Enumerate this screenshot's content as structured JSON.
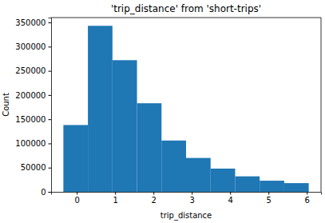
{
  "chart_data": {
    "type": "histogram",
    "title": "'trip_distance' from 'short-trips'",
    "x_label": "trip_distance",
    "y_label": "Count",
    "bins": [
      -0.35,
      0.29,
      0.93,
      1.57,
      2.21,
      2.85,
      3.49,
      4.13,
      4.77,
      5.41,
      6.05
    ],
    "values": [
      138000,
      343000,
      272000,
      183000,
      106000,
      70000,
      48000,
      32000,
      23000,
      18000
    ],
    "color": "#1f77b4",
    "xlim": [
      -0.67,
      6.37
    ],
    "xticks": [
      0,
      1,
      2,
      3,
      4,
      5,
      6
    ],
    "ylim": [
      0,
      360000
    ],
    "yticks": [
      0,
      50000,
      100000,
      150000,
      200000,
      250000,
      300000,
      350000
    ],
    "grid": false
  }
}
